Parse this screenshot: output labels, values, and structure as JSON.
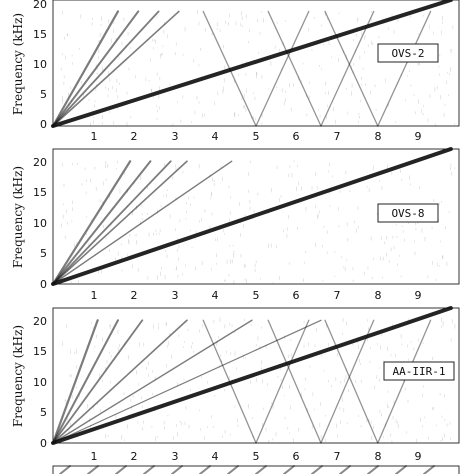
{
  "chart_data": [
    {
      "type": "spectrogram",
      "label": "OVS-2",
      "ylabel": "Frequency (kHz)",
      "x_ticks": [
        1,
        2,
        3,
        4,
        5,
        6,
        7,
        8,
        9
      ],
      "y_ticks": [
        0,
        5,
        10,
        15,
        20
      ],
      "xlim": [
        0,
        10
      ],
      "ylim": [
        0,
        20
      ],
      "colors": {
        "ink": "#111111",
        "background": "#ffffff"
      },
      "main_sweep_end_khz_at_9_8s": 22,
      "harmonic_end_times_s": [
        1.6,
        2.1,
        2.6,
        3.1
      ],
      "mirror_images": true
    },
    {
      "type": "spectrogram",
      "label": "OVS-8",
      "ylabel": "Frequency (kHz)",
      "x_ticks": [
        1,
        2,
        3,
        4,
        5,
        6,
        7,
        8,
        9
      ],
      "y_ticks": [
        0,
        5,
        10,
        15,
        20
      ],
      "xlim": [
        0,
        10
      ],
      "ylim": [
        0,
        20
      ],
      "colors": {
        "ink": "#111111",
        "background": "#ffffff"
      },
      "main_sweep_end_khz_at_9_8s": 22,
      "harmonic_end_times_s": [
        1.9,
        2.4,
        2.9,
        3.3,
        4.4
      ],
      "mirror_images": false
    },
    {
      "type": "spectrogram",
      "label": "AA-IIR-1",
      "ylabel": "Frequency (kHz)",
      "x_ticks": [
        1,
        2,
        3,
        4,
        5,
        6,
        7,
        8,
        9
      ],
      "y_ticks": [
        0,
        5,
        10,
        15,
        20
      ],
      "xlim": [
        0,
        10
      ],
      "ylim": [
        0,
        20
      ],
      "colors": {
        "ink": "#111111",
        "background": "#ffffff"
      },
      "main_sweep_end_khz_at_9_8s": 22,
      "harmonic_end_times_s": [
        1.1,
        1.6,
        2.2,
        3.3,
        4.9,
        6.6
      ],
      "mirror_images": true
    }
  ]
}
